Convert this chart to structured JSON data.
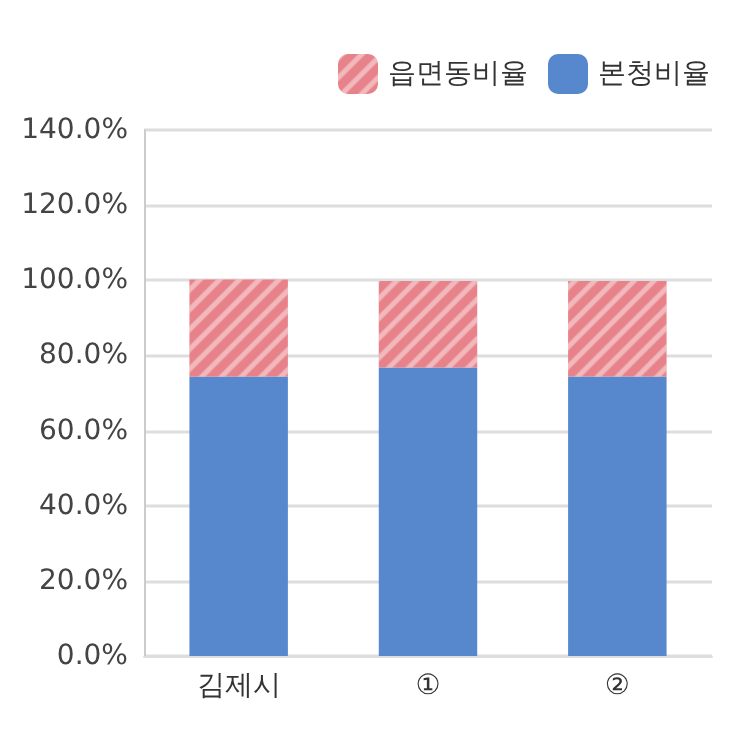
{
  "chart_data": {
    "type": "bar",
    "stacked": true,
    "categories": [
      "김제시",
      "①",
      "②"
    ],
    "series": [
      {
        "name": "본청비율",
        "color": "#5787cc",
        "values": [
          74.4,
          76.8,
          74.4
        ]
      },
      {
        "name": "읍면동비율",
        "color": "#e8828a",
        "values": [
          25.8,
          23.0,
          25.4
        ]
      }
    ],
    "ylim": [
      0,
      140
    ],
    "yticks": [
      {
        "value": 0,
        "label": "0.0%"
      },
      {
        "value": 20,
        "label": "20.0%"
      },
      {
        "value": 40,
        "label": "40.0%"
      },
      {
        "value": 60,
        "label": "60.0%"
      },
      {
        "value": 80,
        "label": "80.0%"
      },
      {
        "value": 100,
        "label": "100.0%"
      },
      {
        "value": 120,
        "label": "120.0%"
      },
      {
        "value": 140,
        "label": "140.0%"
      }
    ],
    "grid": "y",
    "legend": "top right"
  }
}
